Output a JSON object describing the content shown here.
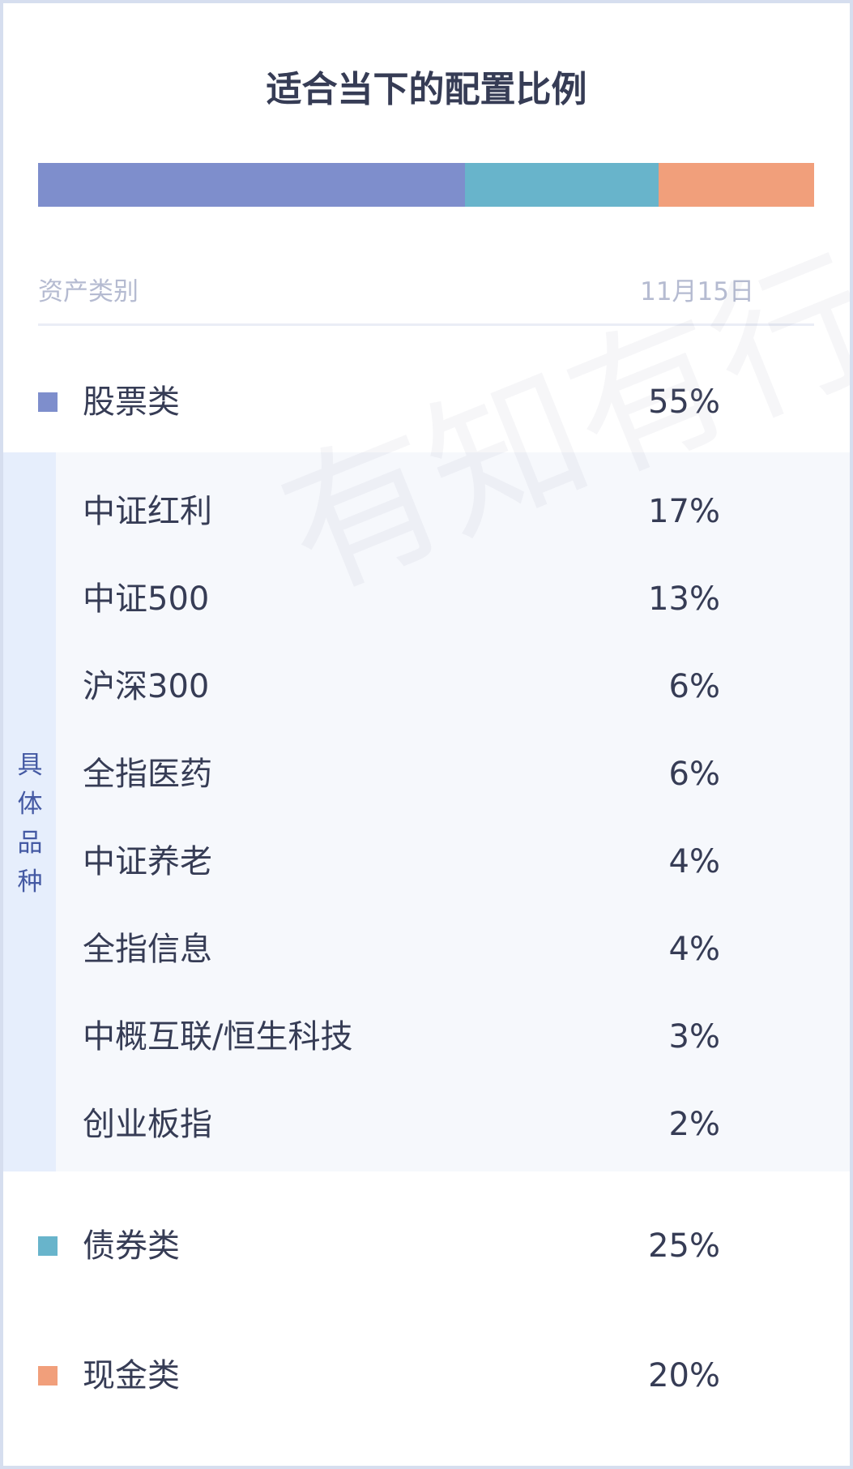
{
  "title": "适合当下的配置比例",
  "allocation_bar": [
    {
      "name": "股票类",
      "percent": 55,
      "color": "#7e8ecc"
    },
    {
      "name": "债券类",
      "percent": 25,
      "color": "#68b4cb"
    },
    {
      "name": "现金类",
      "percent": 20,
      "color": "#f19f7b"
    }
  ],
  "table_header": {
    "category": "资产类别",
    "date": "11月15日"
  },
  "stocks": {
    "label": "股票类",
    "value": "55%",
    "color": "#7e8ecc"
  },
  "sub_section_label": "具体品种",
  "sub_items": [
    {
      "label": "中证红利",
      "value": "17%"
    },
    {
      "label": "中证500",
      "value": "13%"
    },
    {
      "label": "沪深300",
      "value": "6%"
    },
    {
      "label": "全指医药",
      "value": "6%"
    },
    {
      "label": "中证养老",
      "value": "4%"
    },
    {
      "label": "全指信息",
      "value": "4%"
    },
    {
      "label": "中概互联/恒生科技",
      "value": "3%"
    },
    {
      "label": "创业板指",
      "value": "2%"
    }
  ],
  "bonds": {
    "label": "债券类",
    "value": "25%",
    "color": "#68b4cb"
  },
  "cash": {
    "label": "现金类",
    "value": "20%",
    "color": "#f19f7b"
  },
  "watermark": "有知有行"
}
